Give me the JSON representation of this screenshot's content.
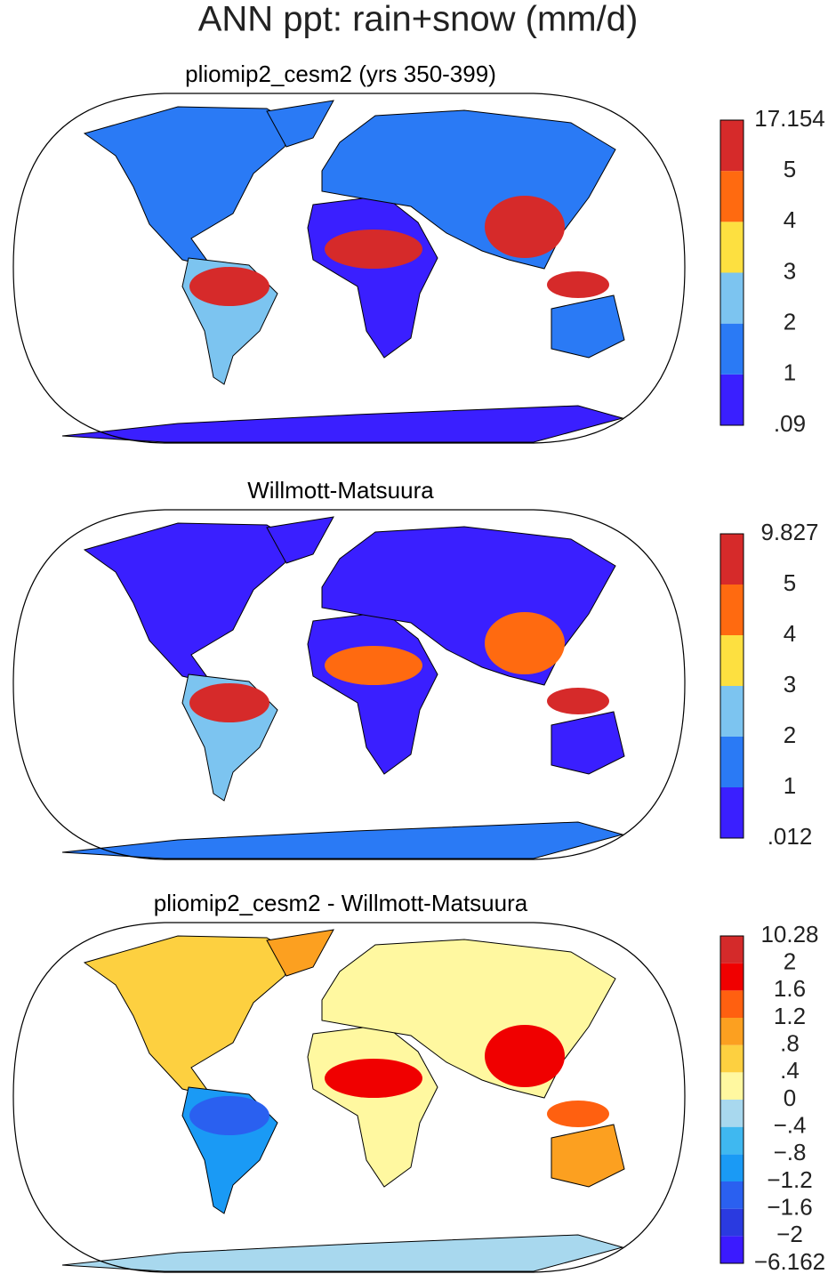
{
  "title": "ANN ppt: rain+snow (mm/d)",
  "panels": [
    {
      "title": "pliomip2_cesm2 (yrs 350-399)",
      "colorbar": {
        "labels": [
          ".09",
          "1",
          "2",
          "3",
          "4",
          "5",
          "17.154"
        ],
        "colors": [
          "#3a1fff",
          "#2a7af5",
          "#7cc4f0",
          "#fde040",
          "#ff6a10",
          "#d62a2a"
        ]
      }
    },
    {
      "title": "Willmott-Matsuura",
      "colorbar": {
        "labels": [
          ".012",
          "1",
          "2",
          "3",
          "4",
          "5",
          "9.827"
        ],
        "colors": [
          "#3a1fff",
          "#2a7af5",
          "#7cc4f0",
          "#fde040",
          "#ff6a10",
          "#d62a2a"
        ]
      }
    },
    {
      "title": "pliomip2_cesm2 - Willmott-Matsuura",
      "colorbar": {
        "labels": [
          "−6.162",
          "−2",
          "−1.6",
          "−1.2",
          "−.8",
          "−.4",
          "0",
          ".4",
          ".8",
          "1.2",
          "1.6",
          "2",
          "10.28"
        ],
        "colors": [
          "#3b1aff",
          "#2a3ae0",
          "#2a60f0",
          "#1a9af5",
          "#3fb8f0",
          "#a8d8ee",
          "#fff8a0",
          "#fdd040",
          "#fca020",
          "#ff6010",
          "#f00000",
          "#d42a2a"
        ]
      }
    }
  ]
}
